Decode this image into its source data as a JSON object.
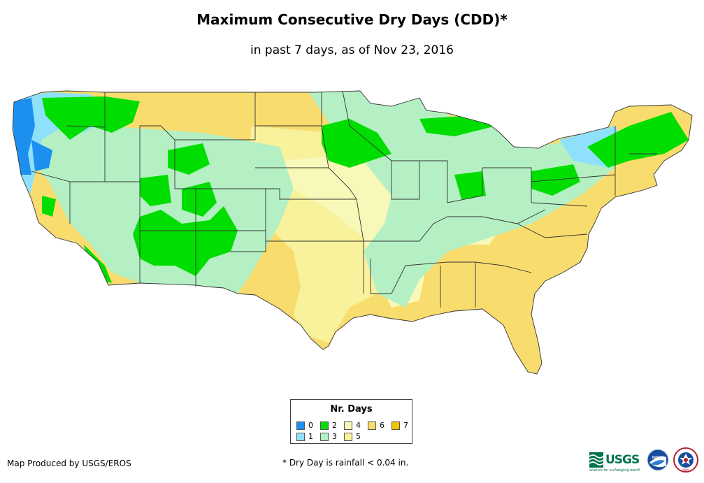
{
  "header": {
    "title": "Maximum Consecutive Dry Days (CDD)*",
    "subtitle": "in past 7 days, as of Nov 23, 2016"
  },
  "legend": {
    "title": "Nr. Days",
    "items": [
      {
        "label": "0",
        "color": "#1d8ff0"
      },
      {
        "label": "1",
        "color": "#8fe1fb"
      },
      {
        "label": "2",
        "color": "#00dd00"
      },
      {
        "label": "3",
        "color": "#b4f0c4"
      },
      {
        "label": "4",
        "color": "#f8f8b8"
      },
      {
        "label": "5",
        "color": "#f8f29c"
      },
      {
        "label": "6",
        "color": "#f9dc6e"
      },
      {
        "label": "7",
        "color": "#f7c200"
      }
    ]
  },
  "footer": {
    "credit": "Map Produced by USGS/EROS",
    "footnote": "* Dry Day is rainfall < 0.04 in.",
    "usgs_logo": "USGS",
    "usgs_tagline": "science for a changing world",
    "noaa_logo": "noaa",
    "nws_logo": "NWS"
  },
  "colors": {
    "state_border": "#333333",
    "background": "#ffffff"
  }
}
